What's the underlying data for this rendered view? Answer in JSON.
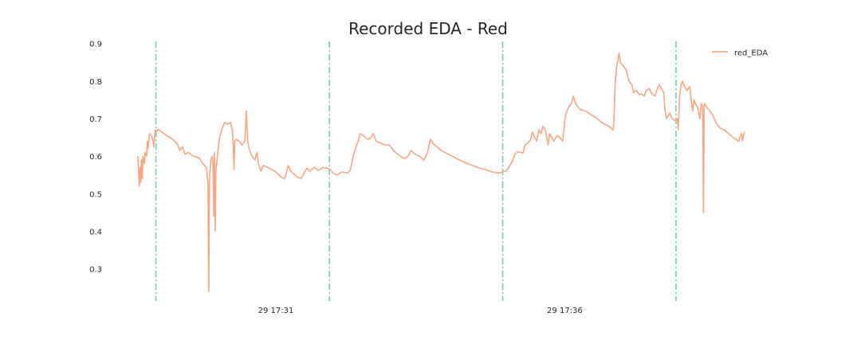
{
  "chart_data": {
    "type": "line",
    "title": "Recorded EDA - Red",
    "xlabel": "",
    "ylabel": "",
    "x_ticks": [
      {
        "label": "29 17:31",
        "t": 191
      },
      {
        "label": "29 17:36",
        "t": 591
      }
    ],
    "y_ticks": [
      0.3,
      0.4,
      0.5,
      0.6,
      0.7,
      0.8,
      0.9
    ],
    "xlim": [
      0,
      840
    ],
    "ylim": [
      0.21,
      0.91
    ],
    "grid": false,
    "legend": "top-right",
    "colors": {
      "series": "#fca582",
      "markers": "#66d3b4"
    },
    "markers": [
      25,
      265,
      505,
      745
    ],
    "series": [
      {
        "name": "red_EDA",
        "points": [
          [
            0,
            0.6
          ],
          [
            1,
            0.56
          ],
          [
            2,
            0.52
          ],
          [
            3,
            0.57
          ],
          [
            4,
            0.53
          ],
          [
            5,
            0.59
          ],
          [
            6,
            0.54
          ],
          [
            7,
            0.6
          ],
          [
            9,
            0.58
          ],
          [
            10,
            0.61
          ],
          [
            12,
            0.6
          ],
          [
            13,
            0.64
          ],
          [
            14,
            0.62
          ],
          [
            16,
            0.66
          ],
          [
            19,
            0.655
          ],
          [
            21,
            0.64
          ],
          [
            22,
            0.625
          ],
          [
            24,
            0.67
          ],
          [
            26,
            0.665
          ],
          [
            28,
            0.672
          ],
          [
            32,
            0.666
          ],
          [
            40,
            0.655
          ],
          [
            48,
            0.645
          ],
          [
            55,
            0.632
          ],
          [
            58,
            0.615
          ],
          [
            62,
            0.625
          ],
          [
            65,
            0.605
          ],
          [
            70,
            0.61
          ],
          [
            75,
            0.602
          ],
          [
            85,
            0.595
          ],
          [
            90,
            0.58
          ],
          [
            95,
            0.57
          ],
          [
            97,
            0.52
          ],
          [
            98,
            0.24
          ],
          [
            99,
            0.54
          ],
          [
            101,
            0.59
          ],
          [
            103,
            0.6
          ],
          [
            104,
            0.58
          ],
          [
            105,
            0.44
          ],
          [
            106,
            0.61
          ],
          [
            107,
            0.4
          ],
          [
            108,
            0.56
          ],
          [
            110,
            0.6
          ],
          [
            113,
            0.65
          ],
          [
            116,
            0.67
          ],
          [
            120,
            0.69
          ],
          [
            124,
            0.685
          ],
          [
            128,
            0.69
          ],
          [
            131,
            0.67
          ],
          [
            133,
            0.565
          ],
          [
            134,
            0.64
          ],
          [
            136,
            0.645
          ],
          [
            140,
            0.64
          ],
          [
            144,
            0.63
          ],
          [
            148,
            0.64
          ],
          [
            150,
            0.72
          ],
          [
            152,
            0.64
          ],
          [
            154,
            0.62
          ],
          [
            158,
            0.6
          ],
          [
            162,
            0.59
          ],
          [
            165,
            0.61
          ],
          [
            167,
            0.58
          ],
          [
            170,
            0.56
          ],
          [
            174,
            0.575
          ],
          [
            180,
            0.57
          ],
          [
            190,
            0.56
          ],
          [
            198,
            0.545
          ],
          [
            203,
            0.54
          ],
          [
            205,
            0.55
          ],
          [
            208,
            0.575
          ],
          [
            212,
            0.56
          ],
          [
            220,
            0.545
          ],
          [
            226,
            0.54
          ],
          [
            230,
            0.555
          ],
          [
            234,
            0.568
          ],
          [
            238,
            0.56
          ],
          [
            244,
            0.57
          ],
          [
            250,
            0.562
          ],
          [
            256,
            0.57
          ],
          [
            262,
            0.568
          ],
          [
            266,
            0.565
          ],
          [
            270,
            0.555
          ],
          [
            276,
            0.55
          ],
          [
            282,
            0.558
          ],
          [
            290,
            0.555
          ],
          [
            294,
            0.562
          ],
          [
            298,
            0.6
          ],
          [
            302,
            0.625
          ],
          [
            305,
            0.64
          ],
          [
            308,
            0.66
          ],
          [
            312,
            0.655
          ],
          [
            318,
            0.645
          ],
          [
            322,
            0.648
          ],
          [
            326,
            0.66
          ],
          [
            330,
            0.64
          ],
          [
            336,
            0.635
          ],
          [
            342,
            0.63
          ],
          [
            348,
            0.63
          ],
          [
            354,
            0.615
          ],
          [
            360,
            0.605
          ],
          [
            366,
            0.596
          ],
          [
            370,
            0.594
          ],
          [
            374,
            0.6
          ],
          [
            378,
            0.615
          ],
          [
            384,
            0.605
          ],
          [
            390,
            0.6
          ],
          [
            396,
            0.59
          ],
          [
            401,
            0.61
          ],
          [
            405,
            0.645
          ],
          [
            408,
            0.635
          ],
          [
            414,
            0.625
          ],
          [
            420,
            0.615
          ],
          [
            430,
            0.605
          ],
          [
            440,
            0.595
          ],
          [
            450,
            0.585
          ],
          [
            460,
            0.578
          ],
          [
            470,
            0.57
          ],
          [
            480,
            0.565
          ],
          [
            490,
            0.558
          ],
          [
            500,
            0.555
          ],
          [
            505,
            0.558
          ],
          [
            510,
            0.56
          ],
          [
            515,
            0.575
          ],
          [
            518,
            0.585
          ],
          [
            522,
            0.605
          ],
          [
            526,
            0.612
          ],
          [
            530,
            0.61
          ],
          [
            533,
            0.608
          ],
          [
            536,
            0.63
          ],
          [
            540,
            0.635
          ],
          [
            544,
            0.645
          ],
          [
            546,
            0.665
          ],
          [
            548,
            0.655
          ],
          [
            552,
            0.64
          ],
          [
            555,
            0.67
          ],
          [
            558,
            0.66
          ],
          [
            561,
            0.68
          ],
          [
            564,
            0.67
          ],
          [
            566,
            0.65
          ],
          [
            568,
            0.63
          ],
          [
            570,
            0.66
          ],
          [
            573,
            0.65
          ],
          [
            576,
            0.64
          ],
          [
            580,
            0.655
          ],
          [
            584,
            0.65
          ],
          [
            588,
            0.64
          ],
          [
            592,
            0.71
          ],
          [
            596,
            0.73
          ],
          [
            600,
            0.74
          ],
          [
            603,
            0.76
          ],
          [
            606,
            0.74
          ],
          [
            612,
            0.725
          ],
          [
            620,
            0.72
          ],
          [
            628,
            0.71
          ],
          [
            636,
            0.7
          ],
          [
            642,
            0.69
          ],
          [
            646,
            0.685
          ],
          [
            652,
            0.68
          ],
          [
            658,
            0.67
          ],
          [
            659,
            0.69
          ],
          [
            661,
            0.8
          ],
          [
            663,
            0.84
          ],
          [
            665,
            0.86
          ],
          [
            666,
            0.875
          ],
          [
            668,
            0.85
          ],
          [
            672,
            0.84
          ],
          [
            676,
            0.83
          ],
          [
            680,
            0.8
          ],
          [
            684,
            0.79
          ],
          [
            686,
            0.77
          ],
          [
            690,
            0.775
          ],
          [
            694,
            0.765
          ],
          [
            698,
            0.765
          ],
          [
            701,
            0.76
          ],
          [
            704,
            0.775
          ],
          [
            708,
            0.78
          ],
          [
            712,
            0.765
          ],
          [
            716,
            0.76
          ],
          [
            719,
            0.78
          ],
          [
            722,
            0.79
          ],
          [
            725,
            0.78
          ],
          [
            728,
            0.77
          ],
          [
            730,
            0.72
          ],
          [
            732,
            0.7
          ],
          [
            736,
            0.715
          ],
          [
            740,
            0.7
          ],
          [
            744,
            0.695
          ],
          [
            747,
            0.7
          ],
          [
            748,
            0.67
          ],
          [
            750,
            0.76
          ],
          [
            752,
            0.79
          ],
          [
            754,
            0.8
          ],
          [
            756,
            0.79
          ],
          [
            760,
            0.775
          ],
          [
            764,
            0.785
          ],
          [
            768,
            0.72
          ],
          [
            770,
            0.75
          ],
          [
            772,
            0.74
          ],
          [
            775,
            0.73
          ],
          [
            778,
            0.7
          ],
          [
            780,
            0.74
          ],
          [
            782,
            0.73
          ],
          [
            783,
            0.45
          ],
          [
            784,
            0.74
          ],
          [
            788,
            0.73
          ],
          [
            792,
            0.72
          ],
          [
            796,
            0.71
          ],
          [
            800,
            0.69
          ],
          [
            806,
            0.675
          ],
          [
            812,
            0.67
          ],
          [
            818,
            0.66
          ],
          [
            824,
            0.65
          ],
          [
            828,
            0.645
          ],
          [
            832,
            0.64
          ],
          [
            834,
            0.655
          ],
          [
            836,
            0.66
          ],
          [
            837,
            0.64
          ],
          [
            839,
            0.66
          ],
          [
            840,
            0.665
          ]
        ]
      }
    ]
  }
}
